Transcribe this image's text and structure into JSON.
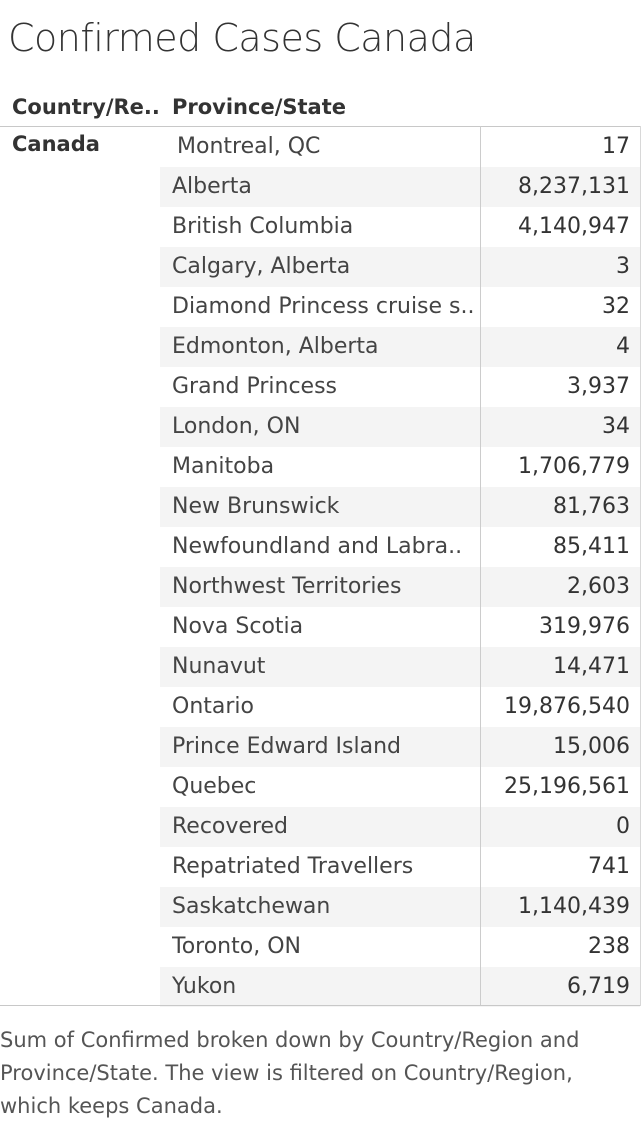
{
  "title": "Confirmed Cases Canada",
  "columns": {
    "country": "Country/Re..",
    "province": "Province/State"
  },
  "country": "Canada",
  "caption": "Sum of Confirmed broken down by Country/Region and Province/State. The view is filtered on Country/Region, which keeps Canada.",
  "chart_data": {
    "type": "table",
    "title": "Confirmed Cases Canada",
    "columns": [
      "Country/Re..",
      "Province/State",
      "Confirmed"
    ],
    "rows": [
      {
        "province": "Montreal, QC",
        "value": "17"
      },
      {
        "province": "Alberta",
        "value": "8,237,131"
      },
      {
        "province": "British Columbia",
        "value": "4,140,947"
      },
      {
        "province": "Calgary, Alberta",
        "value": "3"
      },
      {
        "province": "Diamond Princess cruise s..",
        "value": "32"
      },
      {
        "province": "Edmonton, Alberta",
        "value": "4"
      },
      {
        "province": "Grand Princess",
        "value": "3,937"
      },
      {
        "province": "London, ON",
        "value": "34"
      },
      {
        "province": "Manitoba",
        "value": "1,706,779"
      },
      {
        "province": "New Brunswick",
        "value": "81,763"
      },
      {
        "province": "Newfoundland and Labra..",
        "value": "85,411"
      },
      {
        "province": "Northwest Territories",
        "value": "2,603"
      },
      {
        "province": "Nova Scotia",
        "value": "319,976"
      },
      {
        "province": "Nunavut",
        "value": "14,471"
      },
      {
        "province": "Ontario",
        "value": "19,876,540"
      },
      {
        "province": "Prince Edward Island",
        "value": "15,006"
      },
      {
        "province": "Quebec",
        "value": "25,196,561"
      },
      {
        "province": "Recovered",
        "value": "0"
      },
      {
        "province": "Repatriated Travellers",
        "value": "741"
      },
      {
        "province": "Saskatchewan",
        "value": "1,140,439"
      },
      {
        "province": "Toronto, ON",
        "value": "238"
      },
      {
        "province": "Yukon",
        "value": "6,719"
      }
    ]
  }
}
